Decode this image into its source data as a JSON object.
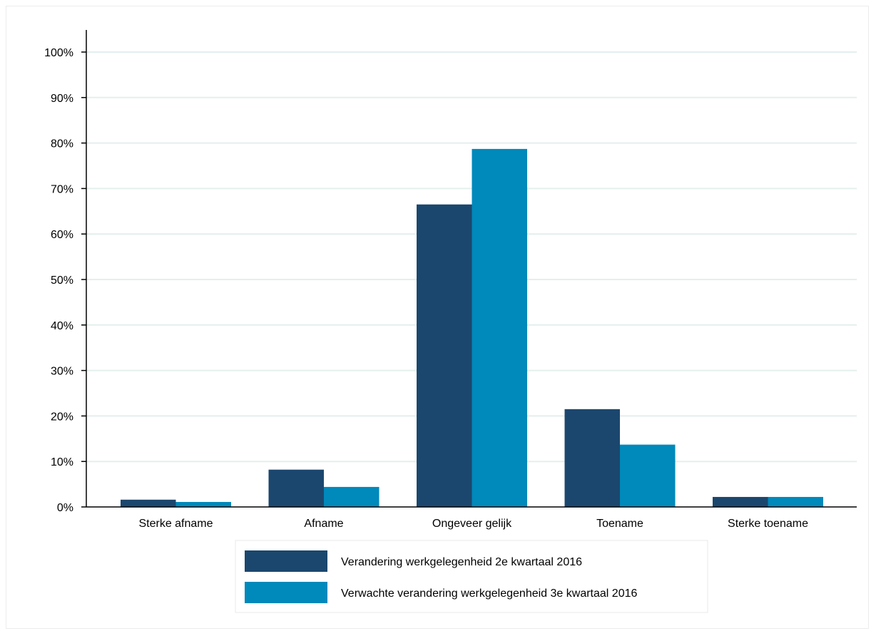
{
  "chart_data": {
    "type": "bar",
    "categories": [
      "Sterke afname",
      "Afname",
      "Ongeveer gelijk",
      "Toename",
      "Sterke toename"
    ],
    "series": [
      {
        "name": "Verandering werkgelegenheid 2e kwartaal 2016",
        "values": [
          1.6,
          8.2,
          66.5,
          21.5,
          2.2
        ],
        "color": "#1b476e"
      },
      {
        "name": "Verwachte verandering werkgelegenheid 3e kwartaal 2016",
        "values": [
          1.1,
          4.4,
          78.7,
          13.7,
          2.2
        ],
        "color": "#0089bb"
      }
    ],
    "yticks": [
      "0%",
      "10%",
      "20%",
      "30%",
      "40%",
      "50%",
      "60%",
      "70%",
      "80%",
      "90%",
      "100%"
    ],
    "ylim": [
      0,
      100
    ],
    "grid": true,
    "legend_position": "bottom",
    "title": "",
    "xlabel": "",
    "ylabel": ""
  }
}
